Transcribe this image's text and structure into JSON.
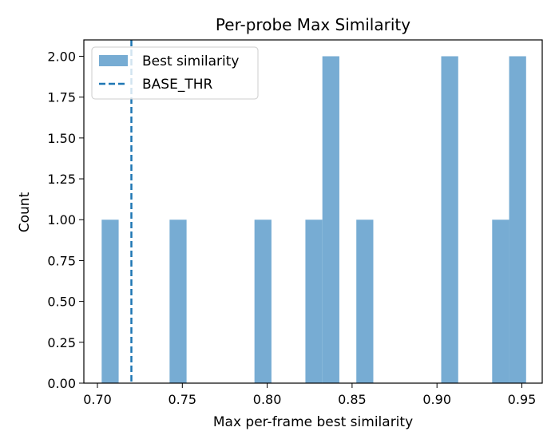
{
  "chart_data": {
    "type": "bar",
    "title": "Per-probe Max Similarity",
    "xlabel": "Max per-frame best similarity",
    "ylabel": "Count",
    "xlim": [
      0.692,
      0.962
    ],
    "ylim": [
      0,
      2.1
    ],
    "xticks": [
      "0.70",
      "0.75",
      "0.80",
      "0.85",
      "0.90",
      "0.95"
    ],
    "yticks": [
      "0.00",
      "0.25",
      "0.50",
      "0.75",
      "1.00",
      "1.25",
      "1.50",
      "1.75",
      "2.00"
    ],
    "bin_edges": [
      0.7025,
      0.7125,
      0.7225,
      0.7325,
      0.7425,
      0.7525,
      0.7625,
      0.7725,
      0.7825,
      0.7925,
      0.8025,
      0.8125,
      0.8225,
      0.8325,
      0.8425,
      0.8525,
      0.8625,
      0.8725,
      0.8825,
      0.8925,
      0.9025,
      0.9125,
      0.9225,
      0.9325,
      0.9425,
      0.9525
    ],
    "counts": [
      1,
      0,
      0,
      0,
      1,
      0,
      0,
      0,
      0,
      1,
      0,
      0,
      1,
      2,
      0,
      1,
      0,
      0,
      0,
      0,
      2,
      0,
      0,
      1,
      2
    ],
    "threshold": {
      "x": 0.72
    },
    "series": [
      {
        "name": "Best similarity",
        "color": "#77acd3"
      },
      {
        "name": "BASE_THR",
        "color": "#1f77b4",
        "style": "dashed"
      }
    ],
    "legend_position": "upper-left",
    "grid": false
  }
}
